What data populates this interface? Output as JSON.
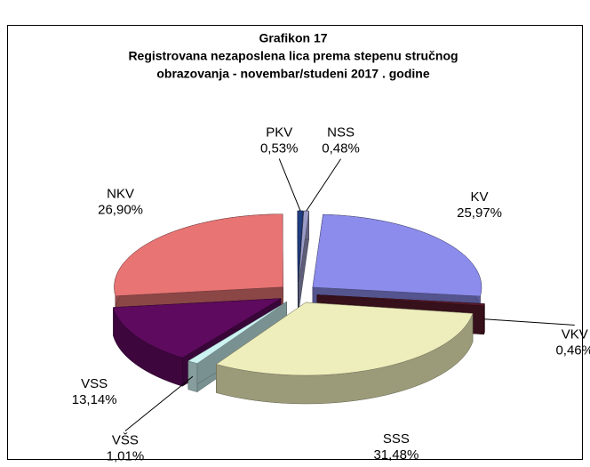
{
  "chart_data": {
    "type": "pie",
    "title": [
      "Grafikon 17",
      "Registrovana nezaposlena lica prema stepenu stručnog",
      "obrazovanja - novembar/studeni 2017 . godine"
    ],
    "categories": [
      "NKV",
      "PKV",
      "NSS",
      "KV",
      "VKV",
      "SSS",
      "VŠS",
      "VSS"
    ],
    "values": [
      26.9,
      0.53,
      0.48,
      25.97,
      0.46,
      31.48,
      1.01,
      13.14
    ],
    "value_labels": [
      "26,90%",
      "0,53%",
      "0,48%",
      "25,97%",
      "0,46%",
      "31,48%",
      "1,01%",
      "13,14%"
    ],
    "colors": [
      "#e87474",
      "#1f3d80",
      "#9c9cc8",
      "#8c8cec",
      "#5a1a2c",
      "#eeeebc",
      "#ccf2f2",
      "#5e0a5e"
    ]
  }
}
